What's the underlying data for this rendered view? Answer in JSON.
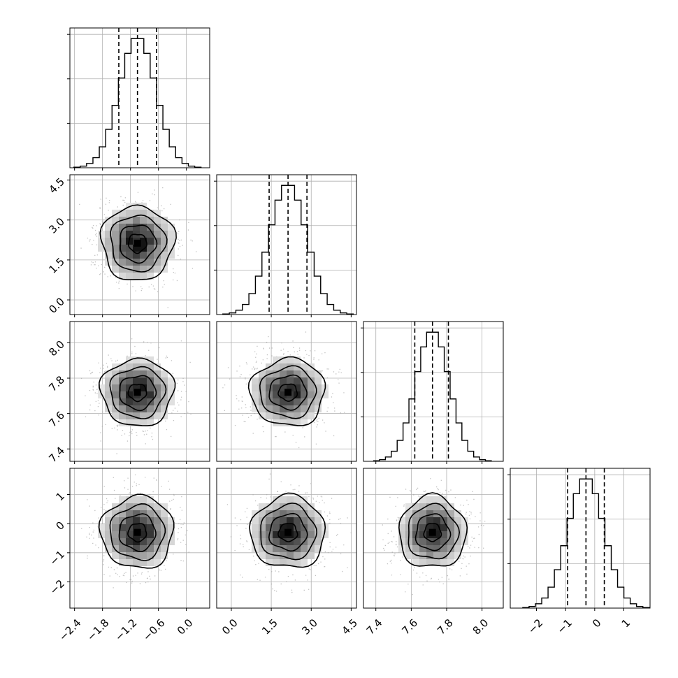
{
  "chart_data": {
    "type": "corner",
    "description_params": [
      "p0",
      "p1",
      "p2",
      "p3"
    ],
    "grid": true,
    "params": [
      {
        "range": [
          -2.5,
          0.5
        ],
        "ticks": [
          -2.4,
          -1.8,
          -1.2,
          -0.6,
          0.0
        ],
        "tick_labels": [
          "−2.4",
          "−1.8",
          "−1.2",
          "−0.6",
          "0.0"
        ],
        "quantiles": [
          -1.45,
          -1.05,
          -0.64
        ],
        "mean": -1.05,
        "sd": 0.39
      },
      {
        "range": [
          -0.55,
          4.7
        ],
        "ticks": [
          0.0,
          1.5,
          3.0,
          4.5
        ],
        "tick_labels": [
          "0.0",
          "1.5",
          "3.0",
          "4.5"
        ],
        "quantiles": [
          1.42,
          2.13,
          2.84
        ],
        "mean": 2.13,
        "sd": 0.7
      },
      {
        "range": [
          7.33,
          8.12
        ],
        "ticks": [
          7.4,
          7.6,
          7.8,
          8.0
        ],
        "tick_labels": [
          "7.4",
          "7.6",
          "7.8",
          "8.0"
        ],
        "quantiles": [
          7.62,
          7.72,
          7.81
        ],
        "mean": 7.72,
        "sd": 0.095
      },
      {
        "range": [
          -2.9,
          1.9
        ],
        "ticks": [
          -2,
          -1,
          0,
          1
        ],
        "tick_labels": [
          "−2",
          "−1",
          "0",
          "1"
        ],
        "quantiles": [
          -0.93,
          -0.3,
          0.33
        ],
        "mean": -0.3,
        "sd": 0.62
      }
    ],
    "hist_ticks": 3,
    "contour_levels_sigma": [
      0.5,
      1.0,
      1.5,
      2.0
    ]
  }
}
